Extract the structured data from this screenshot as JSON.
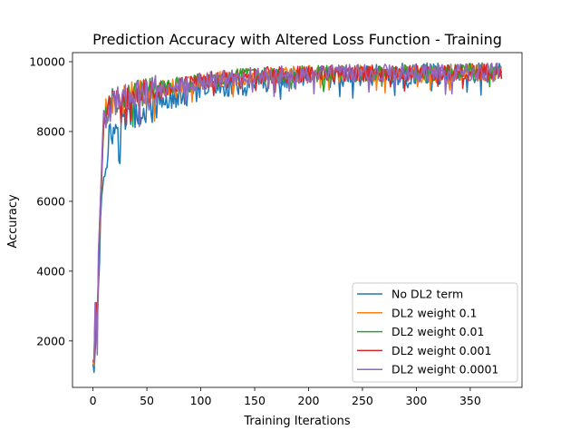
{
  "chart_data": {
    "type": "line",
    "title": "Prediction Accuracy with Altered Loss Function - Training",
    "xlabel": "Training Iterations",
    "ylabel": "Accuracy",
    "xlim": [
      -19,
      398
    ],
    "ylim": [
      670,
      10260
    ],
    "xticks": [
      0,
      50,
      100,
      150,
      200,
      250,
      300,
      350
    ],
    "yticks": [
      2000,
      4000,
      6000,
      8000,
      10000
    ],
    "xtick_labels": [
      "0",
      "50",
      "100",
      "150",
      "200",
      "250",
      "300",
      "350"
    ],
    "ytick_labels": [
      "2000",
      "4000",
      "6000",
      "8000",
      "10000"
    ],
    "grid": false,
    "legend_position": "lower right",
    "x_start": 0,
    "x_end": 379,
    "series": [
      {
        "name": "No DL2 term",
        "color": "#1f77b4",
        "anchors": [
          [
            0,
            1350
          ],
          [
            1,
            1100
          ],
          [
            2,
            1700
          ],
          [
            3,
            2300
          ],
          [
            4,
            2700
          ],
          [
            5,
            3500
          ],
          [
            6,
            4200
          ],
          [
            7,
            5500
          ],
          [
            8,
            6100
          ],
          [
            10,
            6700
          ],
          [
            12,
            7200
          ],
          [
            14,
            7700
          ],
          [
            16,
            7900
          ],
          [
            20,
            8100
          ],
          [
            25,
            8300
          ],
          [
            30,
            8450
          ],
          [
            40,
            8600
          ],
          [
            50,
            8700
          ],
          [
            60,
            8800
          ],
          [
            80,
            9000
          ],
          [
            100,
            9200
          ],
          [
            130,
            9350
          ],
          [
            160,
            9450
          ],
          [
            200,
            9550
          ],
          [
            250,
            9600
          ],
          [
            300,
            9650
          ],
          [
            379,
            9700
          ]
        ],
        "noise_amp": 320
      },
      {
        "name": "DL2 weight 0.1",
        "color": "#ff7f0e",
        "anchors": [
          [
            0,
            1400
          ],
          [
            1,
            1300
          ],
          [
            2,
            2400
          ],
          [
            3,
            3000
          ],
          [
            4,
            2300
          ],
          [
            5,
            3800
          ],
          [
            6,
            5000
          ],
          [
            7,
            5800
          ],
          [
            8,
            6600
          ],
          [
            9,
            7400
          ],
          [
            10,
            8200
          ],
          [
            12,
            8600
          ],
          [
            15,
            8800
          ],
          [
            20,
            8900
          ],
          [
            30,
            9000
          ],
          [
            50,
            9150
          ],
          [
            80,
            9350
          ],
          [
            100,
            9450
          ],
          [
            150,
            9600
          ],
          [
            200,
            9650
          ],
          [
            379,
            9700
          ]
        ],
        "noise_amp": 240
      },
      {
        "name": "DL2 weight 0.01",
        "color": "#2ca02c",
        "anchors": [
          [
            0,
            1400
          ],
          [
            1,
            1400
          ],
          [
            2,
            2600
          ],
          [
            3,
            3000
          ],
          [
            4,
            2400
          ],
          [
            5,
            3900
          ],
          [
            6,
            5100
          ],
          [
            7,
            5900
          ],
          [
            8,
            6700
          ],
          [
            9,
            7500
          ],
          [
            10,
            8200
          ],
          [
            12,
            8600
          ],
          [
            15,
            8800
          ],
          [
            20,
            8900
          ],
          [
            30,
            9000
          ],
          [
            50,
            9150
          ],
          [
            80,
            9350
          ],
          [
            100,
            9450
          ],
          [
            150,
            9600
          ],
          [
            200,
            9650
          ],
          [
            379,
            9700
          ]
        ],
        "noise_amp": 240
      },
      {
        "name": "DL2 weight 0.001",
        "color": "#d62728",
        "anchors": [
          [
            0,
            1400
          ],
          [
            1,
            1500
          ],
          [
            2,
            2800
          ],
          [
            3,
            3100
          ],
          [
            4,
            2500
          ],
          [
            5,
            4000
          ],
          [
            6,
            5200
          ],
          [
            7,
            6000
          ],
          [
            8,
            6800
          ],
          [
            9,
            7600
          ],
          [
            10,
            8300
          ],
          [
            12,
            8600
          ],
          [
            15,
            8800
          ],
          [
            20,
            8900
          ],
          [
            30,
            9000
          ],
          [
            50,
            9150
          ],
          [
            80,
            9350
          ],
          [
            100,
            9450
          ],
          [
            150,
            9600
          ],
          [
            200,
            9650
          ],
          [
            379,
            9700
          ]
        ],
        "noise_amp": 240
      },
      {
        "name": "DL2 weight 0.0001",
        "color": "#9467bd",
        "anchors": [
          [
            0,
            1400
          ],
          [
            1,
            1400
          ],
          [
            2,
            3100
          ],
          [
            3,
            2700
          ],
          [
            4,
            1600
          ],
          [
            5,
            4500
          ],
          [
            6,
            5300
          ],
          [
            7,
            6100
          ],
          [
            8,
            7000
          ],
          [
            9,
            7900
          ],
          [
            10,
            8600
          ],
          [
            12,
            8500
          ],
          [
            15,
            8800
          ],
          [
            20,
            8900
          ],
          [
            30,
            9000
          ],
          [
            50,
            9150
          ],
          [
            80,
            9350
          ],
          [
            100,
            9450
          ],
          [
            150,
            9600
          ],
          [
            200,
            9650
          ],
          [
            379,
            9700
          ]
        ],
        "noise_amp": 260
      }
    ]
  }
}
